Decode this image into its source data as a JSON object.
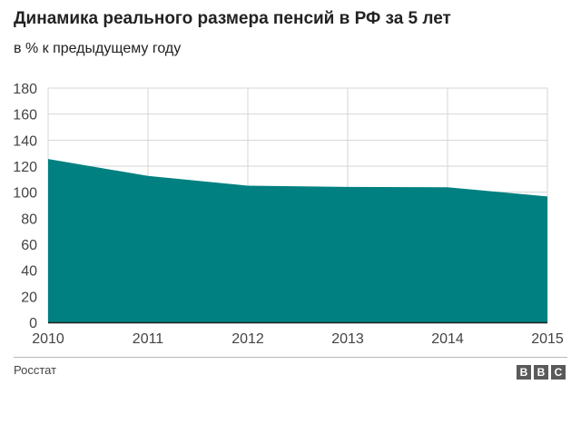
{
  "title": "Динамика реального размера пенсий в РФ за 5 лет",
  "subtitle": "в % к предыдущему году",
  "source": "Росстат",
  "logo": {
    "letters": [
      "B",
      "B",
      "C"
    ]
  },
  "colors": {
    "area": "#008080",
    "grid": "#d6d6d6",
    "axis": "#222222",
    "logo": "#5a5a5a"
  },
  "chart_data": {
    "type": "area",
    "title": "Динамика реального размера пенсий в РФ за 5 лет",
    "subtitle": "в % к предыдущему году",
    "xlabel": "",
    "ylabel": "",
    "x": [
      2010,
      2011,
      2012,
      2013,
      2014,
      2015
    ],
    "x_ticks": [
      "2010",
      "2011",
      "2012",
      "2013",
      "2014",
      "2015"
    ],
    "values": [
      125.5,
      112.5,
      105,
      104,
      103.8,
      96.7
    ],
    "ylim": [
      0,
      180
    ],
    "y_ticks": [
      0,
      20,
      40,
      60,
      80,
      100,
      120,
      140,
      160,
      180
    ],
    "grid": true,
    "legend": "none"
  }
}
